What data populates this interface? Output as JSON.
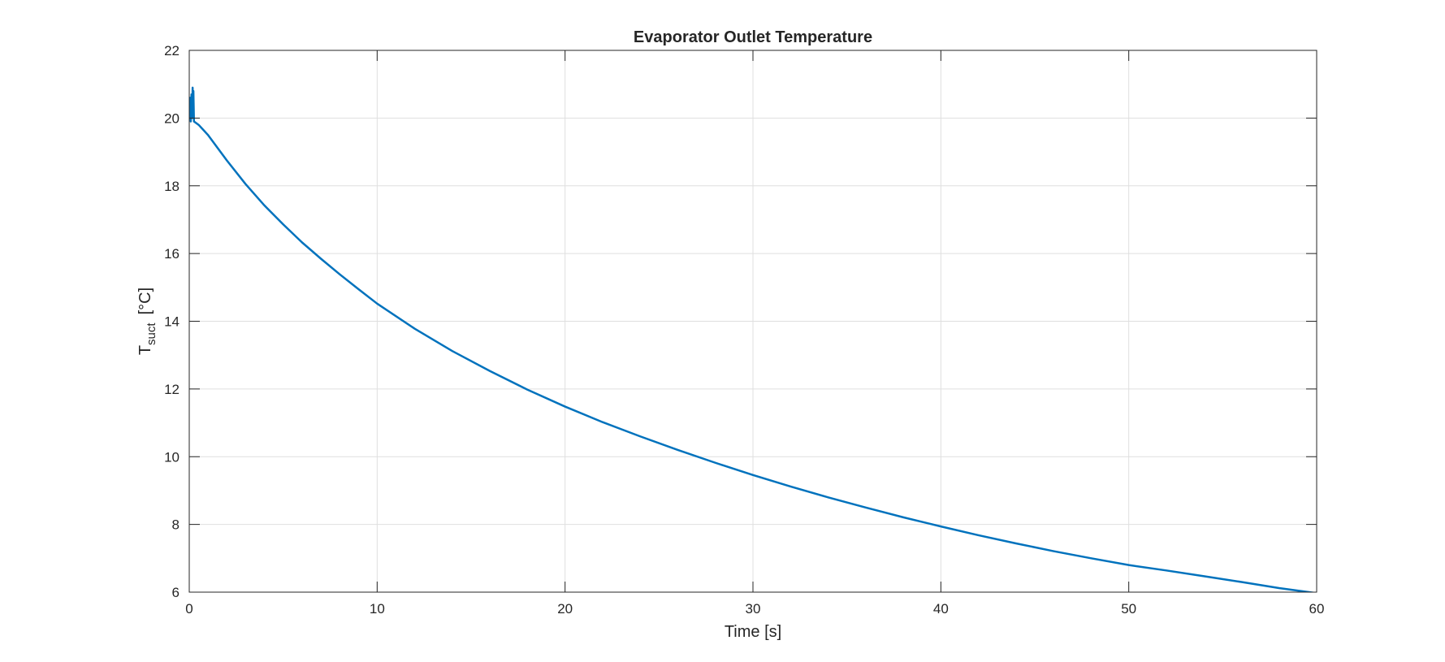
{
  "chart_data": {
    "type": "line",
    "title": "Evaporator Outlet Temperature",
    "xlabel": "Time [s]",
    "ylabel": {
      "main": "T",
      "subscript": "suct",
      "unit": "[°C]"
    },
    "xlim": [
      0,
      60
    ],
    "ylim": [
      6,
      22
    ],
    "xticks": [
      0,
      10,
      20,
      30,
      40,
      50,
      60
    ],
    "yticks": [
      6,
      8,
      10,
      12,
      14,
      16,
      18,
      20,
      22
    ],
    "xtick_labels": [
      "0",
      "10",
      "20",
      "30",
      "40",
      "50",
      "60"
    ],
    "ytick_labels": [
      "6",
      "8",
      "10",
      "12",
      "14",
      "16",
      "18",
      "20",
      "22"
    ],
    "grid": true,
    "box": true,
    "series": [
      {
        "color": "#0072BD",
        "x": [
          0,
          0.05,
          0.08,
          0.12,
          0.15,
          0.18,
          0.2,
          0.22,
          0.25,
          0.5,
          1,
          2,
          3,
          4,
          5,
          6,
          7,
          8,
          9,
          10,
          12,
          14,
          16,
          18,
          20,
          22,
          24,
          26,
          28,
          30,
          32,
          34,
          36,
          38,
          40,
          42,
          44,
          46,
          48,
          50,
          52,
          54,
          56,
          58,
          60
        ],
        "y": [
          20.0,
          20.6,
          19.9,
          20.7,
          20.0,
          20.9,
          20.1,
          20.8,
          19.9,
          19.8,
          19.5,
          18.75,
          18.05,
          17.42,
          16.86,
          16.33,
          15.85,
          15.39,
          14.95,
          14.52,
          13.78,
          13.12,
          12.53,
          11.98,
          11.48,
          11.02,
          10.6,
          10.2,
          9.82,
          9.46,
          9.12,
          8.8,
          8.5,
          8.21,
          7.94,
          7.68,
          7.44,
          7.21,
          7.0,
          6.8,
          6.64,
          6.47,
          6.3,
          6.12,
          5.97
        ]
      }
    ]
  }
}
